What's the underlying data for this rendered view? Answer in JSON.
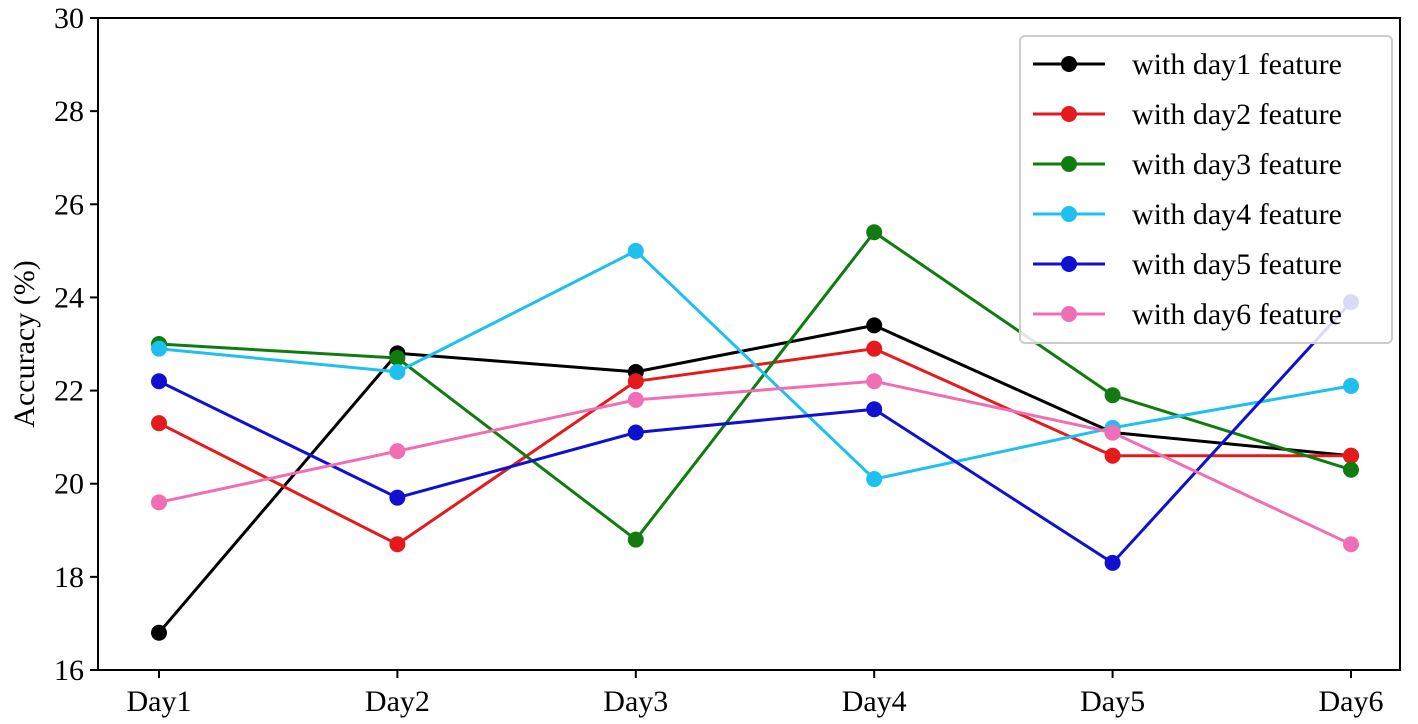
{
  "chart_data": {
    "type": "line",
    "title": "",
    "xlabel": "",
    "ylabel": "Accuracy (%)",
    "categories": [
      "Day1",
      "Day2",
      "Day3",
      "Day4",
      "Day5",
      "Day6"
    ],
    "ylim": [
      16,
      30
    ],
    "yticks": [
      "16",
      "18",
      "20",
      "22",
      "24",
      "26",
      "28",
      "30"
    ],
    "grid": false,
    "legend_position": "top-right",
    "series": [
      {
        "name": "with day1 feature",
        "color": "#000000",
        "values": [
          16.8,
          22.8,
          22.4,
          23.4,
          21.1,
          20.6
        ]
      },
      {
        "name": "with day2 feature",
        "color": "#e41a1c",
        "values": [
          21.3,
          18.7,
          22.2,
          22.9,
          20.6,
          20.6
        ]
      },
      {
        "name": "with day3 feature",
        "color": "#107c10",
        "values": [
          23.0,
          22.7,
          18.8,
          25.4,
          21.9,
          20.3
        ]
      },
      {
        "name": "with day4 feature",
        "color": "#1ec0ef",
        "values": [
          22.9,
          22.4,
          25.0,
          20.1,
          21.2,
          22.1
        ]
      },
      {
        "name": "with day5 feature",
        "color": "#1010d0",
        "values": [
          22.2,
          19.7,
          21.1,
          21.6,
          18.3,
          23.9
        ]
      },
      {
        "name": "with day6 feature",
        "color": "#f06eb4",
        "values": [
          19.6,
          20.7,
          21.8,
          22.2,
          21.1,
          18.7
        ]
      }
    ]
  }
}
